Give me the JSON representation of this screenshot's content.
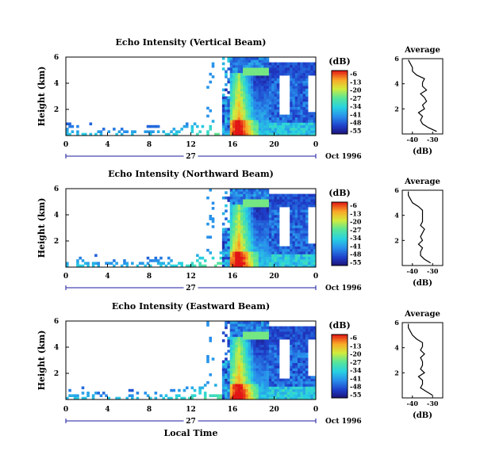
{
  "chart_data": [
    {
      "type": "heatmap",
      "title": "Echo Intensity (Vertical Beam)",
      "ylabel": "Height (km)",
      "x": [
        0,
        4,
        8,
        12,
        16,
        20,
        24
      ],
      "x_tick_labels": [
        "0",
        "4",
        "8",
        "12",
        "16",
        "20",
        "0"
      ],
      "y_tick_labels": [
        "2",
        "4",
        "6"
      ],
      "ylim": [
        0,
        6
      ],
      "date_marker": "27",
      "date_label": "Oct 1996",
      "colorbar": {
        "label": "(dB)",
        "ticks": [
          "-6",
          "-13",
          "-20",
          "-27",
          "-34",
          "-41",
          "-48",
          "-55"
        ]
      },
      "profile": {
        "title": "Average",
        "xlabel": "(dB)",
        "x_tick_labels": [
          "-40",
          "-30"
        ],
        "y_tick_labels": [
          "2",
          "4",
          "6"
        ],
        "xlim": [
          -45,
          -25
        ],
        "ylim": [
          0,
          6
        ],
        "height_km": [
          0.2,
          0.5,
          0.8,
          1.1,
          1.4,
          1.7,
          2.0,
          2.3,
          2.6,
          2.9,
          3.2,
          3.5,
          3.8,
          4.1,
          4.4,
          4.7,
          5.0,
          5.3,
          5.6,
          5.9
        ],
        "values_db": [
          -28,
          -32,
          -35,
          -36,
          -35,
          -37,
          -34,
          -35,
          -33,
          -34,
          -36,
          -33,
          -35,
          -35,
          -34,
          -38,
          -40,
          -40,
          -41,
          -42
        ]
      }
    },
    {
      "type": "heatmap",
      "title": "Echo Intensity (Northward Beam)",
      "ylabel": "Height (km)",
      "x": [
        0,
        4,
        8,
        12,
        16,
        20,
        24
      ],
      "x_tick_labels": [
        "0",
        "4",
        "8",
        "12",
        "16",
        "20",
        "0"
      ],
      "y_tick_labels": [
        "2",
        "4",
        "6"
      ],
      "ylim": [
        0,
        6
      ],
      "date_marker": "27",
      "date_label": "Oct 1996",
      "colorbar": {
        "label": "(dB)",
        "ticks": [
          "-6",
          "-13",
          "-20",
          "-27",
          "-34",
          "-41",
          "-48",
          "-55"
        ]
      },
      "profile": {
        "title": "Average",
        "xlabel": "(dB)",
        "x_tick_labels": [
          "-40",
          "-30"
        ],
        "y_tick_labels": [
          "2",
          "4",
          "6"
        ],
        "xlim": [
          -45,
          -25
        ],
        "ylim": [
          0,
          6
        ],
        "height_km": [
          0.2,
          0.5,
          0.8,
          1.1,
          1.4,
          1.7,
          2.0,
          2.3,
          2.6,
          2.9,
          3.2,
          3.5,
          3.8,
          4.1,
          4.4,
          4.7,
          5.0,
          5.3,
          5.6,
          5.9
        ],
        "values_db": [
          -31,
          -34,
          -36,
          -36,
          -35,
          -37,
          -35,
          -36,
          -35,
          -34,
          -36,
          -35,
          -35,
          -35,
          -35,
          -37,
          -40,
          -41,
          -42,
          -42
        ]
      }
    },
    {
      "type": "heatmap",
      "title": "Echo Intensity (Eastward Beam)",
      "ylabel": "Height (km)",
      "xlabel": "Local Time",
      "x": [
        0,
        4,
        8,
        12,
        16,
        20,
        24
      ],
      "x_tick_labels": [
        "0",
        "4",
        "8",
        "12",
        "16",
        "20",
        "0"
      ],
      "y_tick_labels": [
        "2",
        "4",
        "6"
      ],
      "ylim": [
        0,
        6
      ],
      "date_marker": "27",
      "date_label": "Oct 1996",
      "colorbar": {
        "label": "(dB)",
        "ticks": [
          "-6",
          "-13",
          "-20",
          "-27",
          "-34",
          "-41",
          "-48",
          "-55"
        ]
      },
      "profile": {
        "title": "Average",
        "xlabel": "(dB)",
        "x_tick_labels": [
          "-40",
          "-30"
        ],
        "y_tick_labels": [
          "2",
          "4",
          "6"
        ],
        "xlim": [
          -45,
          -25
        ],
        "ylim": [
          0,
          6
        ],
        "height_km": [
          0.2,
          0.5,
          0.8,
          1.1,
          1.4,
          1.7,
          2.0,
          2.3,
          2.6,
          2.9,
          3.2,
          3.5,
          3.8,
          4.1,
          4.4,
          4.7,
          5.0,
          5.3,
          5.6,
          5.9
        ],
        "values_db": [
          -30,
          -33,
          -36,
          -35,
          -35,
          -37,
          -34,
          -36,
          -35,
          -35,
          -36,
          -34,
          -36,
          -35,
          -35,
          -38,
          -40,
          -41,
          -42,
          -42
        ]
      }
    }
  ]
}
